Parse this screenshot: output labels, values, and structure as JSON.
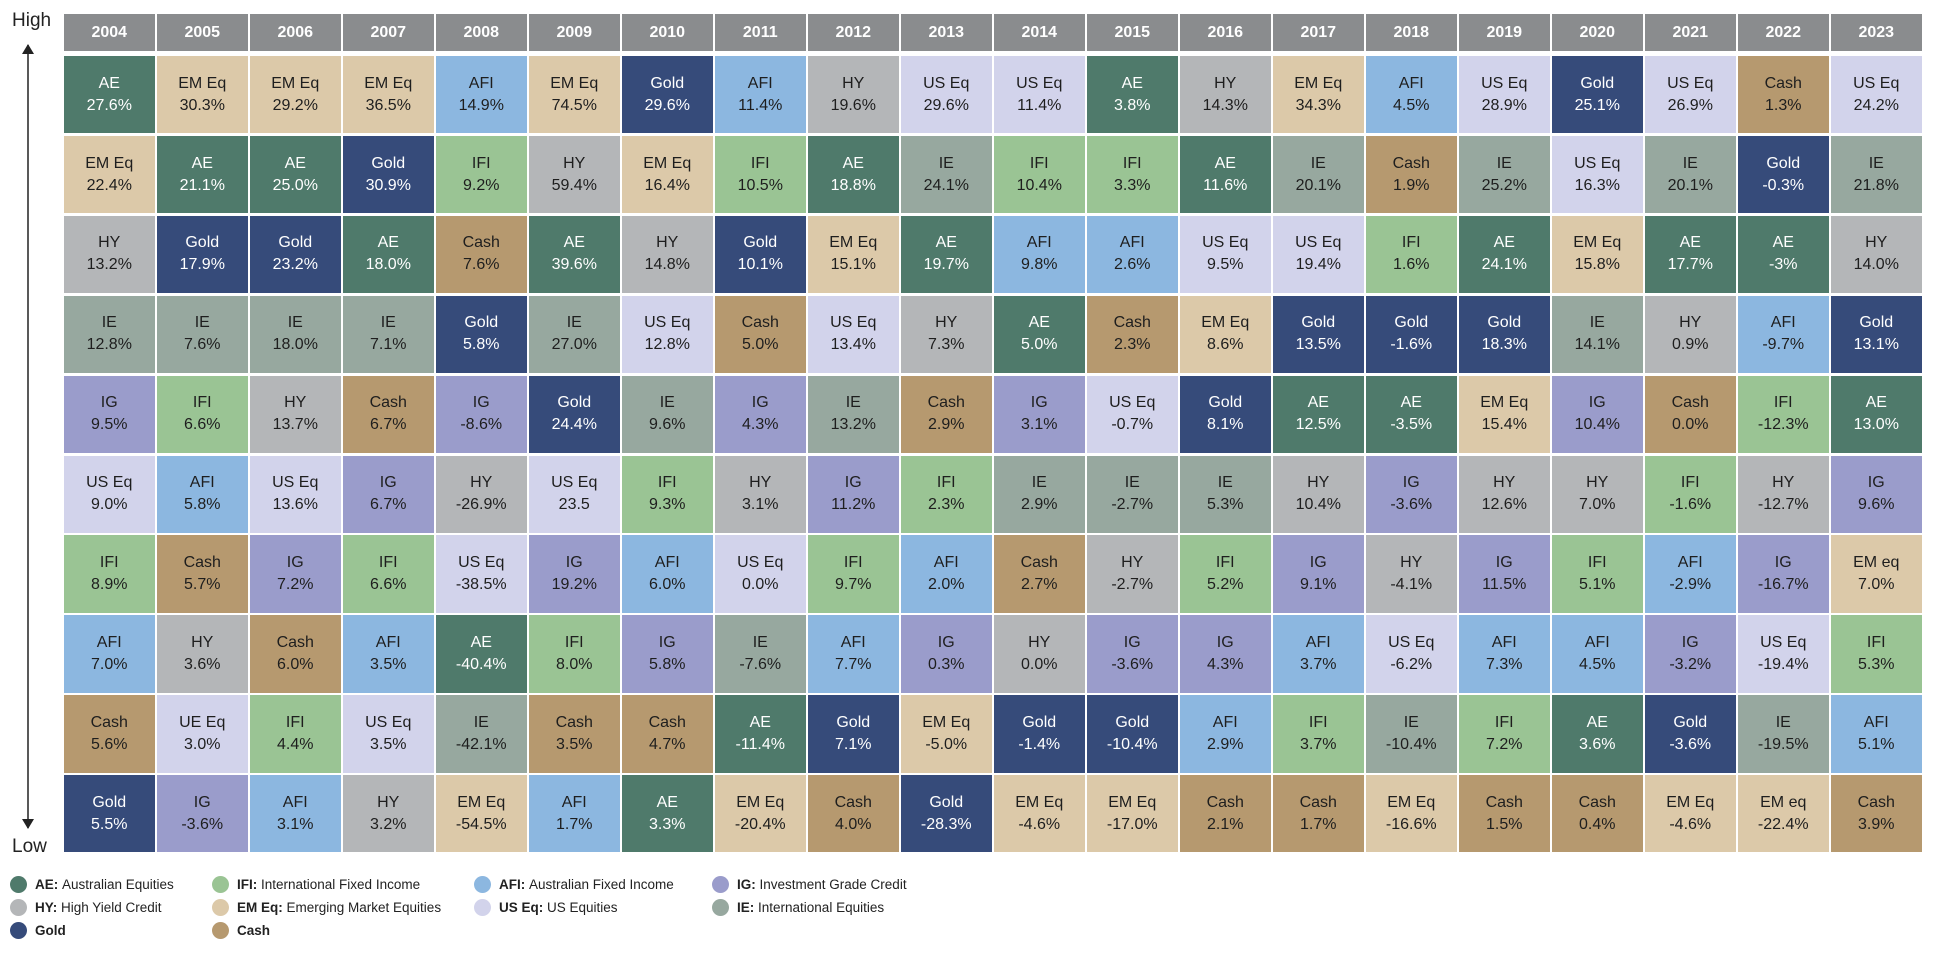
{
  "axis": {
    "high_label": "High",
    "low_label": "Low"
  },
  "colors": {
    "AE": "#4f7a6b",
    "EM Eq": "#dcc9a9",
    "HY": "#b4b6b8",
    "IE": "#97a89f",
    "IG": "#9a9ccb",
    "US Eq": "#d2d3eb",
    "IFI": "#9ac494",
    "AFI": "#8cb7e0",
    "Cash": "#b6996f",
    "Gold": "#364b7a"
  },
  "legend": [
    {
      "code": "AE",
      "label": "Australian Equities",
      "color": "#4f7a6b"
    },
    {
      "code": "IFI",
      "label": "International Fixed Income",
      "color": "#9ac494"
    },
    {
      "code": "AFI",
      "label": "Australian Fixed Income",
      "color": "#8cb7e0"
    },
    {
      "code": "IG",
      "label": "Investment Grade Credit",
      "color": "#9a9ccb"
    },
    {
      "code": "HY",
      "label": "High Yield Credit",
      "color": "#b4b6b8"
    },
    {
      "code": "EM Eq",
      "label": "Emerging Market Equities",
      "color": "#dcc9a9"
    },
    {
      "code": "US Eq",
      "label": "US Equities",
      "color": "#d2d3eb"
    },
    {
      "code": "IE",
      "label": "International Equities",
      "color": "#97a89f"
    },
    {
      "code": "Gold",
      "label": "",
      "color": "#364b7a"
    },
    {
      "code": "Cash",
      "label": "",
      "color": "#b6996f"
    }
  ],
  "chart_data": {
    "type": "table",
    "title": "",
    "years": [
      "2004",
      "2005",
      "2006",
      "2007",
      "2008",
      "2009",
      "2010",
      "2011",
      "2012",
      "2013",
      "2014",
      "2015",
      "2016",
      "2017",
      "2018",
      "2019",
      "2020",
      "2021",
      "2022",
      "2023"
    ],
    "columns": [
      [
        [
          "AE",
          "27.6%"
        ],
        [
          "EM Eq",
          "22.4%"
        ],
        [
          "HY",
          "13.2%"
        ],
        [
          "IE",
          "12.8%"
        ],
        [
          "IG",
          "9.5%"
        ],
        [
          "US Eq",
          "9.0%"
        ],
        [
          "IFI",
          "8.9%"
        ],
        [
          "AFI",
          "7.0%"
        ],
        [
          "Cash",
          "5.6%"
        ],
        [
          "Gold",
          "5.5%"
        ]
      ],
      [
        [
          "EM Eq",
          "30.3%"
        ],
        [
          "AE",
          "21.1%"
        ],
        [
          "Gold",
          "17.9%"
        ],
        [
          "IE",
          "7.6%"
        ],
        [
          "IFI",
          "6.6%"
        ],
        [
          "AFI",
          "5.8%"
        ],
        [
          "Cash",
          "5.7%"
        ],
        [
          "HY",
          "3.6%"
        ],
        [
          "UE Eq",
          "3.0%"
        ],
        [
          "IG",
          "-3.6%"
        ]
      ],
      [
        [
          "EM Eq",
          "29.2%"
        ],
        [
          "AE",
          "25.0%"
        ],
        [
          "Gold",
          "23.2%"
        ],
        [
          "IE",
          "18.0%"
        ],
        [
          "HY",
          "13.7%"
        ],
        [
          "US Eq",
          "13.6%"
        ],
        [
          "IG",
          "7.2%"
        ],
        [
          "Cash",
          "6.0%"
        ],
        [
          "IFI",
          "4.4%"
        ],
        [
          "AFI",
          "3.1%"
        ]
      ],
      [
        [
          "EM Eq",
          "36.5%"
        ],
        [
          "Gold",
          "30.9%"
        ],
        [
          "AE",
          "18.0%"
        ],
        [
          "IE",
          "7.1%"
        ],
        [
          "Cash",
          "6.7%"
        ],
        [
          "IG",
          "6.7%"
        ],
        [
          "IFI",
          "6.6%"
        ],
        [
          "AFI",
          "3.5%"
        ],
        [
          "US Eq",
          "3.5%"
        ],
        [
          "HY",
          "3.2%"
        ]
      ],
      [
        [
          "AFI",
          "14.9%"
        ],
        [
          "IFI",
          "9.2%"
        ],
        [
          "Cash",
          "7.6%"
        ],
        [
          "Gold",
          "5.8%"
        ],
        [
          "IG",
          "-8.6%"
        ],
        [
          "HY",
          "-26.9%"
        ],
        [
          "US Eq",
          "-38.5%"
        ],
        [
          "AE",
          "-40.4%"
        ],
        [
          "IE",
          "-42.1%"
        ],
        [
          "EM Eq",
          "-54.5%"
        ]
      ],
      [
        [
          "EM Eq",
          "74.5%"
        ],
        [
          "HY",
          "59.4%"
        ],
        [
          "AE",
          "39.6%"
        ],
        [
          "IE",
          "27.0%"
        ],
        [
          "Gold",
          "24.4%"
        ],
        [
          "US Eq",
          "23.5"
        ],
        [
          "IG",
          "19.2%"
        ],
        [
          "IFI",
          "8.0%"
        ],
        [
          "Cash",
          "3.5%"
        ],
        [
          "AFI",
          "1.7%"
        ]
      ],
      [
        [
          "Gold",
          "29.6%"
        ],
        [
          "EM Eq",
          "16.4%"
        ],
        [
          "HY",
          "14.8%"
        ],
        [
          "US Eq",
          "12.8%"
        ],
        [
          "IE",
          "9.6%"
        ],
        [
          "IFI",
          "9.3%"
        ],
        [
          "AFI",
          "6.0%"
        ],
        [
          "IG",
          "5.8%"
        ],
        [
          "Cash",
          "4.7%"
        ],
        [
          "AE",
          "3.3%"
        ]
      ],
      [
        [
          "AFI",
          "11.4%"
        ],
        [
          "IFI",
          "10.5%"
        ],
        [
          "Gold",
          "10.1%"
        ],
        [
          "Cash",
          "5.0%"
        ],
        [
          "IG",
          "4.3%"
        ],
        [
          "HY",
          "3.1%"
        ],
        [
          "US Eq",
          "0.0%"
        ],
        [
          "IE",
          "-7.6%"
        ],
        [
          "AE",
          "-11.4%"
        ],
        [
          "EM Eq",
          "-20.4%"
        ]
      ],
      [
        [
          "HY",
          "19.6%"
        ],
        [
          "AE",
          "18.8%"
        ],
        [
          "EM Eq",
          "15.1%"
        ],
        [
          "US Eq",
          "13.4%"
        ],
        [
          "IE",
          "13.2%"
        ],
        [
          "IG",
          "11.2%"
        ],
        [
          "IFI",
          "9.7%"
        ],
        [
          "AFI",
          "7.7%"
        ],
        [
          "Gold",
          "7.1%"
        ],
        [
          "Cash",
          "4.0%"
        ]
      ],
      [
        [
          "US Eq",
          "29.6%"
        ],
        [
          "IE",
          "24.1%"
        ],
        [
          "AE",
          "19.7%"
        ],
        [
          "HY",
          "7.3%"
        ],
        [
          "Cash",
          "2.9%"
        ],
        [
          "IFI",
          "2.3%"
        ],
        [
          "AFI",
          "2.0%"
        ],
        [
          "IG",
          "0.3%"
        ],
        [
          "EM Eq",
          "-5.0%"
        ],
        [
          "Gold",
          "-28.3%"
        ]
      ],
      [
        [
          "US Eq",
          "11.4%"
        ],
        [
          "IFI",
          "10.4%"
        ],
        [
          "AFI",
          "9.8%"
        ],
        [
          "AE",
          "5.0%"
        ],
        [
          "IG",
          "3.1%"
        ],
        [
          "IE",
          "2.9%"
        ],
        [
          "Cash",
          "2.7%"
        ],
        [
          "HY",
          "0.0%"
        ],
        [
          "Gold",
          "-1.4%"
        ],
        [
          "EM Eq",
          "-4.6%"
        ]
      ],
      [
        [
          "AE",
          "3.8%"
        ],
        [
          "IFI",
          "3.3%"
        ],
        [
          "AFI",
          "2.6%"
        ],
        [
          "Cash",
          "2.3%"
        ],
        [
          "US Eq",
          "-0.7%"
        ],
        [
          "IE",
          "-2.7%"
        ],
        [
          "HY",
          "-2.7%"
        ],
        [
          "IG",
          "-3.6%"
        ],
        [
          "Gold",
          "-10.4%"
        ],
        [
          "EM Eq",
          "-17.0%"
        ]
      ],
      [
        [
          "HY",
          "14.3%"
        ],
        [
          "AE",
          "11.6%"
        ],
        [
          "US Eq",
          "9.5%"
        ],
        [
          "EM Eq",
          "8.6%"
        ],
        [
          "Gold",
          "8.1%"
        ],
        [
          "IE",
          "5.3%"
        ],
        [
          "IFI",
          "5.2%"
        ],
        [
          "IG",
          "4.3%"
        ],
        [
          "AFI",
          "2.9%"
        ],
        [
          "Cash",
          "2.1%"
        ]
      ],
      [
        [
          "EM Eq",
          "34.3%"
        ],
        [
          "IE",
          "20.1%"
        ],
        [
          "US Eq",
          "19.4%"
        ],
        [
          "Gold",
          "13.5%"
        ],
        [
          "AE",
          "12.5%"
        ],
        [
          "HY",
          "10.4%"
        ],
        [
          "IG",
          "9.1%"
        ],
        [
          "AFI",
          "3.7%"
        ],
        [
          "IFI",
          "3.7%"
        ],
        [
          "Cash",
          "1.7%"
        ]
      ],
      [
        [
          "AFI",
          "4.5%"
        ],
        [
          "Cash",
          "1.9%"
        ],
        [
          "IFI",
          "1.6%"
        ],
        [
          "Gold",
          "-1.6%"
        ],
        [
          "AE",
          "-3.5%"
        ],
        [
          "IG",
          "-3.6%"
        ],
        [
          "HY",
          "-4.1%"
        ],
        [
          "US Eq",
          "-6.2%"
        ],
        [
          "IE",
          "-10.4%"
        ],
        [
          "EM Eq",
          "-16.6%"
        ]
      ],
      [
        [
          "US Eq",
          "28.9%"
        ],
        [
          "IE",
          "25.2%"
        ],
        [
          "AE",
          "24.1%"
        ],
        [
          "Gold",
          "18.3%"
        ],
        [
          "EM Eq",
          "15.4%"
        ],
        [
          "HY",
          "12.6%"
        ],
        [
          "IG",
          "11.5%"
        ],
        [
          "AFI",
          "7.3%"
        ],
        [
          "IFI",
          "7.2%"
        ],
        [
          "Cash",
          "1.5%"
        ]
      ],
      [
        [
          "Gold",
          "25.1%"
        ],
        [
          "US Eq",
          "16.3%"
        ],
        [
          "EM Eq",
          "15.8%"
        ],
        [
          "IE",
          "14.1%"
        ],
        [
          "IG",
          "10.4%"
        ],
        [
          "HY",
          "7.0%"
        ],
        [
          "IFI",
          "5.1%"
        ],
        [
          "AFI",
          "4.5%"
        ],
        [
          "AE",
          "3.6%"
        ],
        [
          "Cash",
          "0.4%"
        ]
      ],
      [
        [
          "US Eq",
          "26.9%"
        ],
        [
          "IE",
          "20.1%"
        ],
        [
          "AE",
          "17.7%"
        ],
        [
          "HY",
          "0.9%"
        ],
        [
          "Cash",
          "0.0%"
        ],
        [
          "IFI",
          "-1.6%"
        ],
        [
          "AFI",
          "-2.9%"
        ],
        [
          "IG",
          "-3.2%"
        ],
        [
          "Gold",
          "-3.6%"
        ],
        [
          "EM Eq",
          "-4.6%"
        ]
      ],
      [
        [
          "Cash",
          "1.3%"
        ],
        [
          "Gold",
          "-0.3%"
        ],
        [
          "AE",
          "-3%"
        ],
        [
          "AFI",
          "-9.7%"
        ],
        [
          "IFI",
          "-12.3%"
        ],
        [
          "HY",
          "-12.7%"
        ],
        [
          "IG",
          "-16.7%"
        ],
        [
          "US Eq",
          "-19.4%"
        ],
        [
          "IE",
          "-19.5%"
        ],
        [
          "EM eq",
          "-22.4%"
        ]
      ],
      [
        [
          "US Eq",
          "24.2%"
        ],
        [
          "IE",
          "21.8%"
        ],
        [
          "HY",
          "14.0%"
        ],
        [
          "Gold",
          "13.1%"
        ],
        [
          "AE",
          "13.0%"
        ],
        [
          "IG",
          "9.6%"
        ],
        [
          "EM eq",
          "7.0%"
        ],
        [
          "IFI",
          "5.3%"
        ],
        [
          "AFI",
          "5.1%"
        ],
        [
          "Cash",
          "3.9%"
        ]
      ]
    ]
  }
}
